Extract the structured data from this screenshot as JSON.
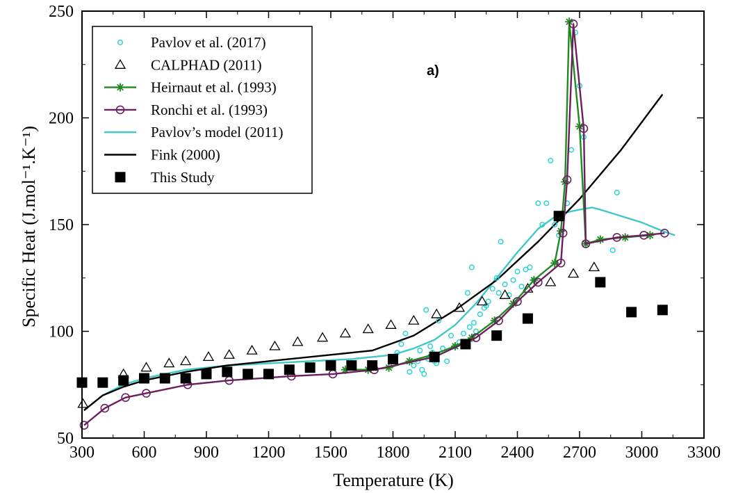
{
  "chart_data": {
    "type": "scatter",
    "panel_label": "a)",
    "xlabel": "Temperature (K)",
    "ylabel": "Specific Heat (J.mol⁻¹.K⁻¹)",
    "xlim": [
      300,
      3300
    ],
    "ylim": [
      50,
      250
    ],
    "x_ticks": [
      300,
      600,
      900,
      1200,
      1500,
      1800,
      2100,
      2400,
      2700,
      3000,
      3300
    ],
    "y_ticks": [
      50,
      100,
      150,
      200,
      250
    ],
    "grid": false,
    "legend_position": "top-left",
    "series": [
      {
        "name": "Pavlov et al. (2017)",
        "style": "open-circle-small",
        "color": "#22d3d3",
        "x": [
          1820,
          1840,
          1860,
          1880,
          1900,
          1920,
          1930,
          1940,
          1950,
          1960,
          1970,
          1980,
          1990,
          2000,
          2010,
          2020,
          2040,
          2060,
          2080,
          2100,
          2120,
          2140,
          2160,
          2170,
          2180,
          2190,
          2200,
          2220,
          2240,
          2250,
          2260,
          2280,
          2300,
          2310,
          2320,
          2340,
          2360,
          2380,
          2400,
          2420,
          2440,
          2460,
          2480,
          2500,
          2520,
          2540,
          2560,
          2580,
          2600,
          2620,
          2640,
          2660,
          2680,
          2700,
          2720,
          2860,
          2880
        ],
        "y": [
          90,
          94,
          99,
          81,
          84,
          86,
          91,
          82,
          80,
          110,
          87,
          93,
          90,
          86,
          85,
          105,
          92,
          86,
          98,
          93,
          95,
          99,
          118,
          102,
          130,
          104,
          100,
          108,
          111,
          112,
          114,
          120,
          125,
          118,
          142,
          122,
          117,
          124,
          128,
          121,
          129,
          130,
          124,
          160,
          150,
          160,
          180,
          150,
          145,
          155,
          160,
          185,
          240,
          215,
          191,
          138,
          165
        ]
      },
      {
        "name": "CALPHAD (2011)",
        "style": "open-triangle",
        "color": "#000000",
        "x": [
          305,
          500,
          610,
          720,
          800,
          910,
          1010,
          1120,
          1230,
          1340,
          1460,
          1570,
          1680,
          1790,
          1900,
          2010,
          2120,
          2230,
          2340,
          2450,
          2560,
          2670,
          2770
        ],
        "y": [
          66,
          80,
          83,
          85,
          86,
          88,
          89,
          91,
          93,
          95,
          97,
          99,
          101,
          103,
          105,
          108,
          111,
          114,
          117,
          120,
          123,
          127,
          130
        ]
      },
      {
        "name": "Heirnaut et al. (1993)",
        "style": "line-star",
        "color": "#1f8a1f",
        "x": [
          1570,
          1680,
          1780,
          1880,
          1990,
          2100,
          2180,
          2290,
          2380,
          2480,
          2580,
          2610,
          2630,
          2650,
          2700,
          2730,
          2800,
          2920,
          3040
        ],
        "y": [
          82,
          82,
          83,
          86,
          89,
          93,
          97,
          105,
          113,
          124,
          132,
          147,
          170,
          245,
          196,
          141,
          143,
          144,
          145
        ]
      },
      {
        "name": "Ronchi et al. (1993)",
        "style": "line-open-circle",
        "color": "#6b1f5e",
        "x": [
          310,
          410,
          510,
          610,
          810,
          1010,
          1310,
          1510,
          1710,
          2000,
          2200,
          2310,
          2400,
          2500,
          2610,
          2620,
          2640,
          2670,
          2720,
          2730,
          2880,
          3010,
          3110
        ],
        "y": [
          56,
          64,
          69,
          71,
          75,
          77,
          79,
          80,
          82,
          88,
          97,
          105,
          114,
          123,
          132,
          146,
          171,
          244,
          195,
          141,
          144,
          145,
          146
        ]
      },
      {
        "name": "Pavlov’s model (2011)",
        "style": "line",
        "color": "#3ec8c8",
        "x": [
          310,
          400,
          500,
          600,
          700,
          800,
          900,
          1000,
          1200,
          1400,
          1600,
          1800,
          1900,
          2000,
          2100,
          2200,
          2300,
          2400,
          2500,
          2600,
          2700,
          2760,
          2800,
          2900,
          3000,
          3100,
          3160
        ],
        "y": [
          63,
          70,
          75,
          78,
          80,
          82,
          83,
          84,
          85,
          86,
          87,
          89,
          92,
          96,
          103,
          113,
          125,
          137,
          148,
          155,
          157,
          158,
          157,
          154,
          151,
          147,
          145
        ]
      },
      {
        "name": "Fink (2000)",
        "style": "line",
        "color": "#000000",
        "x": [
          310,
          400,
          500,
          600,
          800,
          1000,
          1200,
          1400,
          1700,
          1900,
          2100,
          2300,
          2500,
          2700,
          2900,
          3100
        ],
        "y": [
          63,
          70,
          74,
          77,
          81,
          84,
          86,
          88,
          91,
          98,
          110,
          124,
          142,
          162,
          185,
          211
        ]
      },
      {
        "name": "This Study",
        "style": "filled-square",
        "color": "#000000",
        "x": [
          300,
          400,
          500,
          600,
          700,
          800,
          900,
          1000,
          1100,
          1200,
          1300,
          1400,
          1500,
          1600,
          1700,
          1800,
          2000,
          2150,
          2300,
          2450,
          2600,
          2800,
          2950,
          3100
        ],
        "y": [
          76,
          76,
          77,
          78,
          78,
          78,
          80,
          81,
          80,
          80,
          82,
          83,
          84,
          84,
          84,
          87,
          88,
          94,
          98,
          106,
          154,
          123,
          109,
          110
        ]
      }
    ]
  }
}
